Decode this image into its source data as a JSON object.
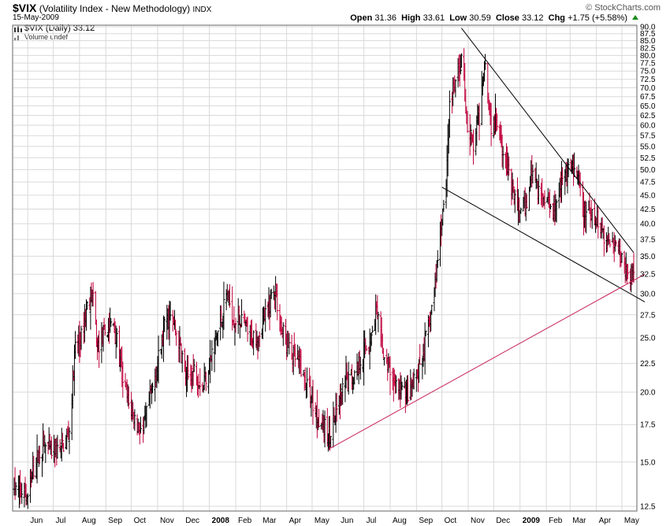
{
  "header": {
    "symbol": "$VIX",
    "name": "(Volatility Index - New Methodology)",
    "exchange": "INDX",
    "date": "15-May-2009",
    "brand": "© StockCharts.com",
    "quote": {
      "open_label": "Open",
      "open": "31.36",
      "high_label": "High",
      "high": "33.61",
      "low_label": "Low",
      "low": "30.59",
      "close_label": "Close",
      "close": "33.12",
      "chg_label": "Chg",
      "chg": "+1.75 (+5.58%)"
    }
  },
  "legend": {
    "price": "$VIX (Daily) 33.12",
    "volume": "Volume undef"
  },
  "colors": {
    "up": "#000000",
    "down": "#c0003a",
    "grid": "#d9d9d9",
    "trend_black": "#000000",
    "trend_red": "#c8205a",
    "up_arrow": "#1a8a1a"
  },
  "chart_data": {
    "type": "ohlc-bar",
    "y_scale": "log",
    "ylim": [
      12.0,
      90.0
    ],
    "y_ticks": [
      "12.5",
      "15.0",
      "17.5",
      "20.0",
      "22.5",
      "25.0",
      "27.5",
      "30.0",
      "32.5",
      "35.0",
      "37.5",
      "40.0",
      "42.5",
      "45.0",
      "47.5",
      "50.0",
      "52.5",
      "55.0",
      "57.5",
      "60.0",
      "62.5",
      "65.0",
      "67.5",
      "70.0",
      "72.5",
      "75.0",
      "77.5",
      "80.0",
      "82.5",
      "85.0",
      "87.5",
      "90.0"
    ],
    "x_ticks": [
      {
        "label": "Jun",
        "date": "2007-06-01",
        "bold": false
      },
      {
        "label": "Jul",
        "date": "2007-07-01",
        "bold": false
      },
      {
        "label": "Aug",
        "date": "2007-08-01",
        "bold": false
      },
      {
        "label": "Sep",
        "date": "2007-09-01",
        "bold": false
      },
      {
        "label": "Oct",
        "date": "2007-10-01",
        "bold": false
      },
      {
        "label": "Nov",
        "date": "2007-11-01",
        "bold": false
      },
      {
        "label": "Dec",
        "date": "2007-12-01",
        "bold": false
      },
      {
        "label": "2008",
        "date": "2008-01-01",
        "bold": true
      },
      {
        "label": "Feb",
        "date": "2008-02-01",
        "bold": false
      },
      {
        "label": "Mar",
        "date": "2008-03-01",
        "bold": false
      },
      {
        "label": "Apr",
        "date": "2008-04-01",
        "bold": false
      },
      {
        "label": "May",
        "date": "2008-05-01",
        "bold": false
      },
      {
        "label": "Jun",
        "date": "2008-06-01",
        "bold": false
      },
      {
        "label": "Jul",
        "date": "2008-07-01",
        "bold": false
      },
      {
        "label": "Aug",
        "date": "2008-08-01",
        "bold": false
      },
      {
        "label": "Sep",
        "date": "2008-09-01",
        "bold": false
      },
      {
        "label": "Oct",
        "date": "2008-10-01",
        "bold": false
      },
      {
        "label": "Nov",
        "date": "2008-11-01",
        "bold": false
      },
      {
        "label": "Dec",
        "date": "2008-12-01",
        "bold": false
      },
      {
        "label": "2009",
        "date": "2009-01-01",
        "bold": true
      },
      {
        "label": "Feb",
        "date": "2009-02-01",
        "bold": false
      },
      {
        "label": "Mar",
        "date": "2009-03-01",
        "bold": false
      },
      {
        "label": "Apr",
        "date": "2009-04-01",
        "bold": false
      },
      {
        "label": "May",
        "date": "2009-05-01",
        "bold": false
      }
    ],
    "x_range": [
      "2007-05-16",
      "2009-05-15"
    ],
    "price_path": [
      [
        "2007-05-16",
        13.5
      ],
      [
        "2007-06-01",
        13.0
      ],
      [
        "2007-06-10",
        15.0
      ],
      [
        "2007-06-20",
        16.2
      ],
      [
        "2007-06-28",
        15.6
      ],
      [
        "2007-07-10",
        15.8
      ],
      [
        "2007-07-20",
        17.0
      ],
      [
        "2007-07-27",
        24.0
      ],
      [
        "2007-08-03",
        25.0
      ],
      [
        "2007-08-10",
        28.5
      ],
      [
        "2007-08-16",
        30.0
      ],
      [
        "2007-08-22",
        24.0
      ],
      [
        "2007-08-30",
        25.5
      ],
      [
        "2007-09-10",
        26.5
      ],
      [
        "2007-09-20",
        21.5
      ],
      [
        "2007-09-28",
        19.0
      ],
      [
        "2007-10-08",
        17.5
      ],
      [
        "2007-10-15",
        17.0
      ],
      [
        "2007-10-25",
        20.0
      ],
      [
        "2007-11-05",
        24.0
      ],
      [
        "2007-11-12",
        27.5
      ],
      [
        "2007-11-20",
        26.5
      ],
      [
        "2007-11-28",
        24.0
      ],
      [
        "2007-12-05",
        21.0
      ],
      [
        "2007-12-15",
        22.0
      ],
      [
        "2007-12-24",
        20.5
      ],
      [
        "2008-01-03",
        23.0
      ],
      [
        "2008-01-12",
        26.0
      ],
      [
        "2008-01-22",
        30.0
      ],
      [
        "2008-01-30",
        27.0
      ],
      [
        "2008-02-08",
        27.0
      ],
      [
        "2008-02-18",
        25.0
      ],
      [
        "2008-02-28",
        25.5
      ],
      [
        "2008-03-10",
        28.0
      ],
      [
        "2008-03-17",
        31.0
      ],
      [
        "2008-03-26",
        26.0
      ],
      [
        "2008-04-05",
        23.5
      ],
      [
        "2008-04-15",
        22.5
      ],
      [
        "2008-04-25",
        20.5
      ],
      [
        "2008-05-05",
        18.5
      ],
      [
        "2008-05-14",
        17.5
      ],
      [
        "2008-05-20",
        16.6
      ],
      [
        "2008-05-30",
        18.5
      ],
      [
        "2008-06-10",
        21.0
      ],
      [
        "2008-06-20",
        21.5
      ],
      [
        "2008-06-30",
        23.5
      ],
      [
        "2008-07-10",
        25.0
      ],
      [
        "2008-07-15",
        28.0
      ],
      [
        "2008-07-25",
        23.0
      ],
      [
        "2008-08-05",
        21.0
      ],
      [
        "2008-08-15",
        20.0
      ],
      [
        "2008-08-25",
        20.0
      ],
      [
        "2008-09-05",
        22.0
      ],
      [
        "2008-09-15",
        26.0
      ],
      [
        "2008-09-22",
        30.0
      ],
      [
        "2008-09-30",
        40.0
      ],
      [
        "2008-10-06",
        48.0
      ],
      [
        "2008-10-10",
        66.0
      ],
      [
        "2008-10-16",
        70.0
      ],
      [
        "2008-10-24",
        79.0
      ],
      [
        "2008-10-31",
        60.0
      ],
      [
        "2008-11-07",
        55.0
      ],
      [
        "2008-11-14",
        62.0
      ],
      [
        "2008-11-20",
        79.0
      ],
      [
        "2008-11-28",
        60.0
      ],
      [
        "2008-12-05",
        62.0
      ],
      [
        "2008-12-12",
        55.0
      ],
      [
        "2008-12-22",
        46.0
      ],
      [
        "2008-12-31",
        42.0
      ],
      [
        "2009-01-08",
        43.0
      ],
      [
        "2009-01-15",
        50.0
      ],
      [
        "2009-01-22",
        46.0
      ],
      [
        "2009-02-02",
        44.0
      ],
      [
        "2009-02-10",
        43.0
      ],
      [
        "2009-02-20",
        48.0
      ],
      [
        "2009-03-02",
        50.0
      ],
      [
        "2009-03-10",
        48.0
      ],
      [
        "2009-03-18",
        42.0
      ],
      [
        "2009-03-27",
        41.0
      ],
      [
        "2009-04-06",
        40.0
      ],
      [
        "2009-04-14",
        37.0
      ],
      [
        "2009-04-22",
        38.0
      ],
      [
        "2009-04-30",
        35.0
      ],
      [
        "2009-05-08",
        32.0
      ],
      [
        "2009-05-15",
        33.12
      ]
    ],
    "trendlines": [
      {
        "kind": "resistance",
        "color": "black",
        "points": [
          [
            "2008-10-24",
            89.5
          ],
          [
            "2009-05-15",
            35.5
          ]
        ]
      },
      {
        "kind": "support-upper",
        "color": "black",
        "points": [
          [
            "2008-10-01",
            46.5
          ],
          [
            "2009-05-28",
            29.0
          ]
        ]
      },
      {
        "kind": "support-rising",
        "color": "red",
        "points": [
          [
            "2008-05-20",
            15.8
          ],
          [
            "2009-05-28",
            32.5
          ]
        ]
      }
    ]
  }
}
